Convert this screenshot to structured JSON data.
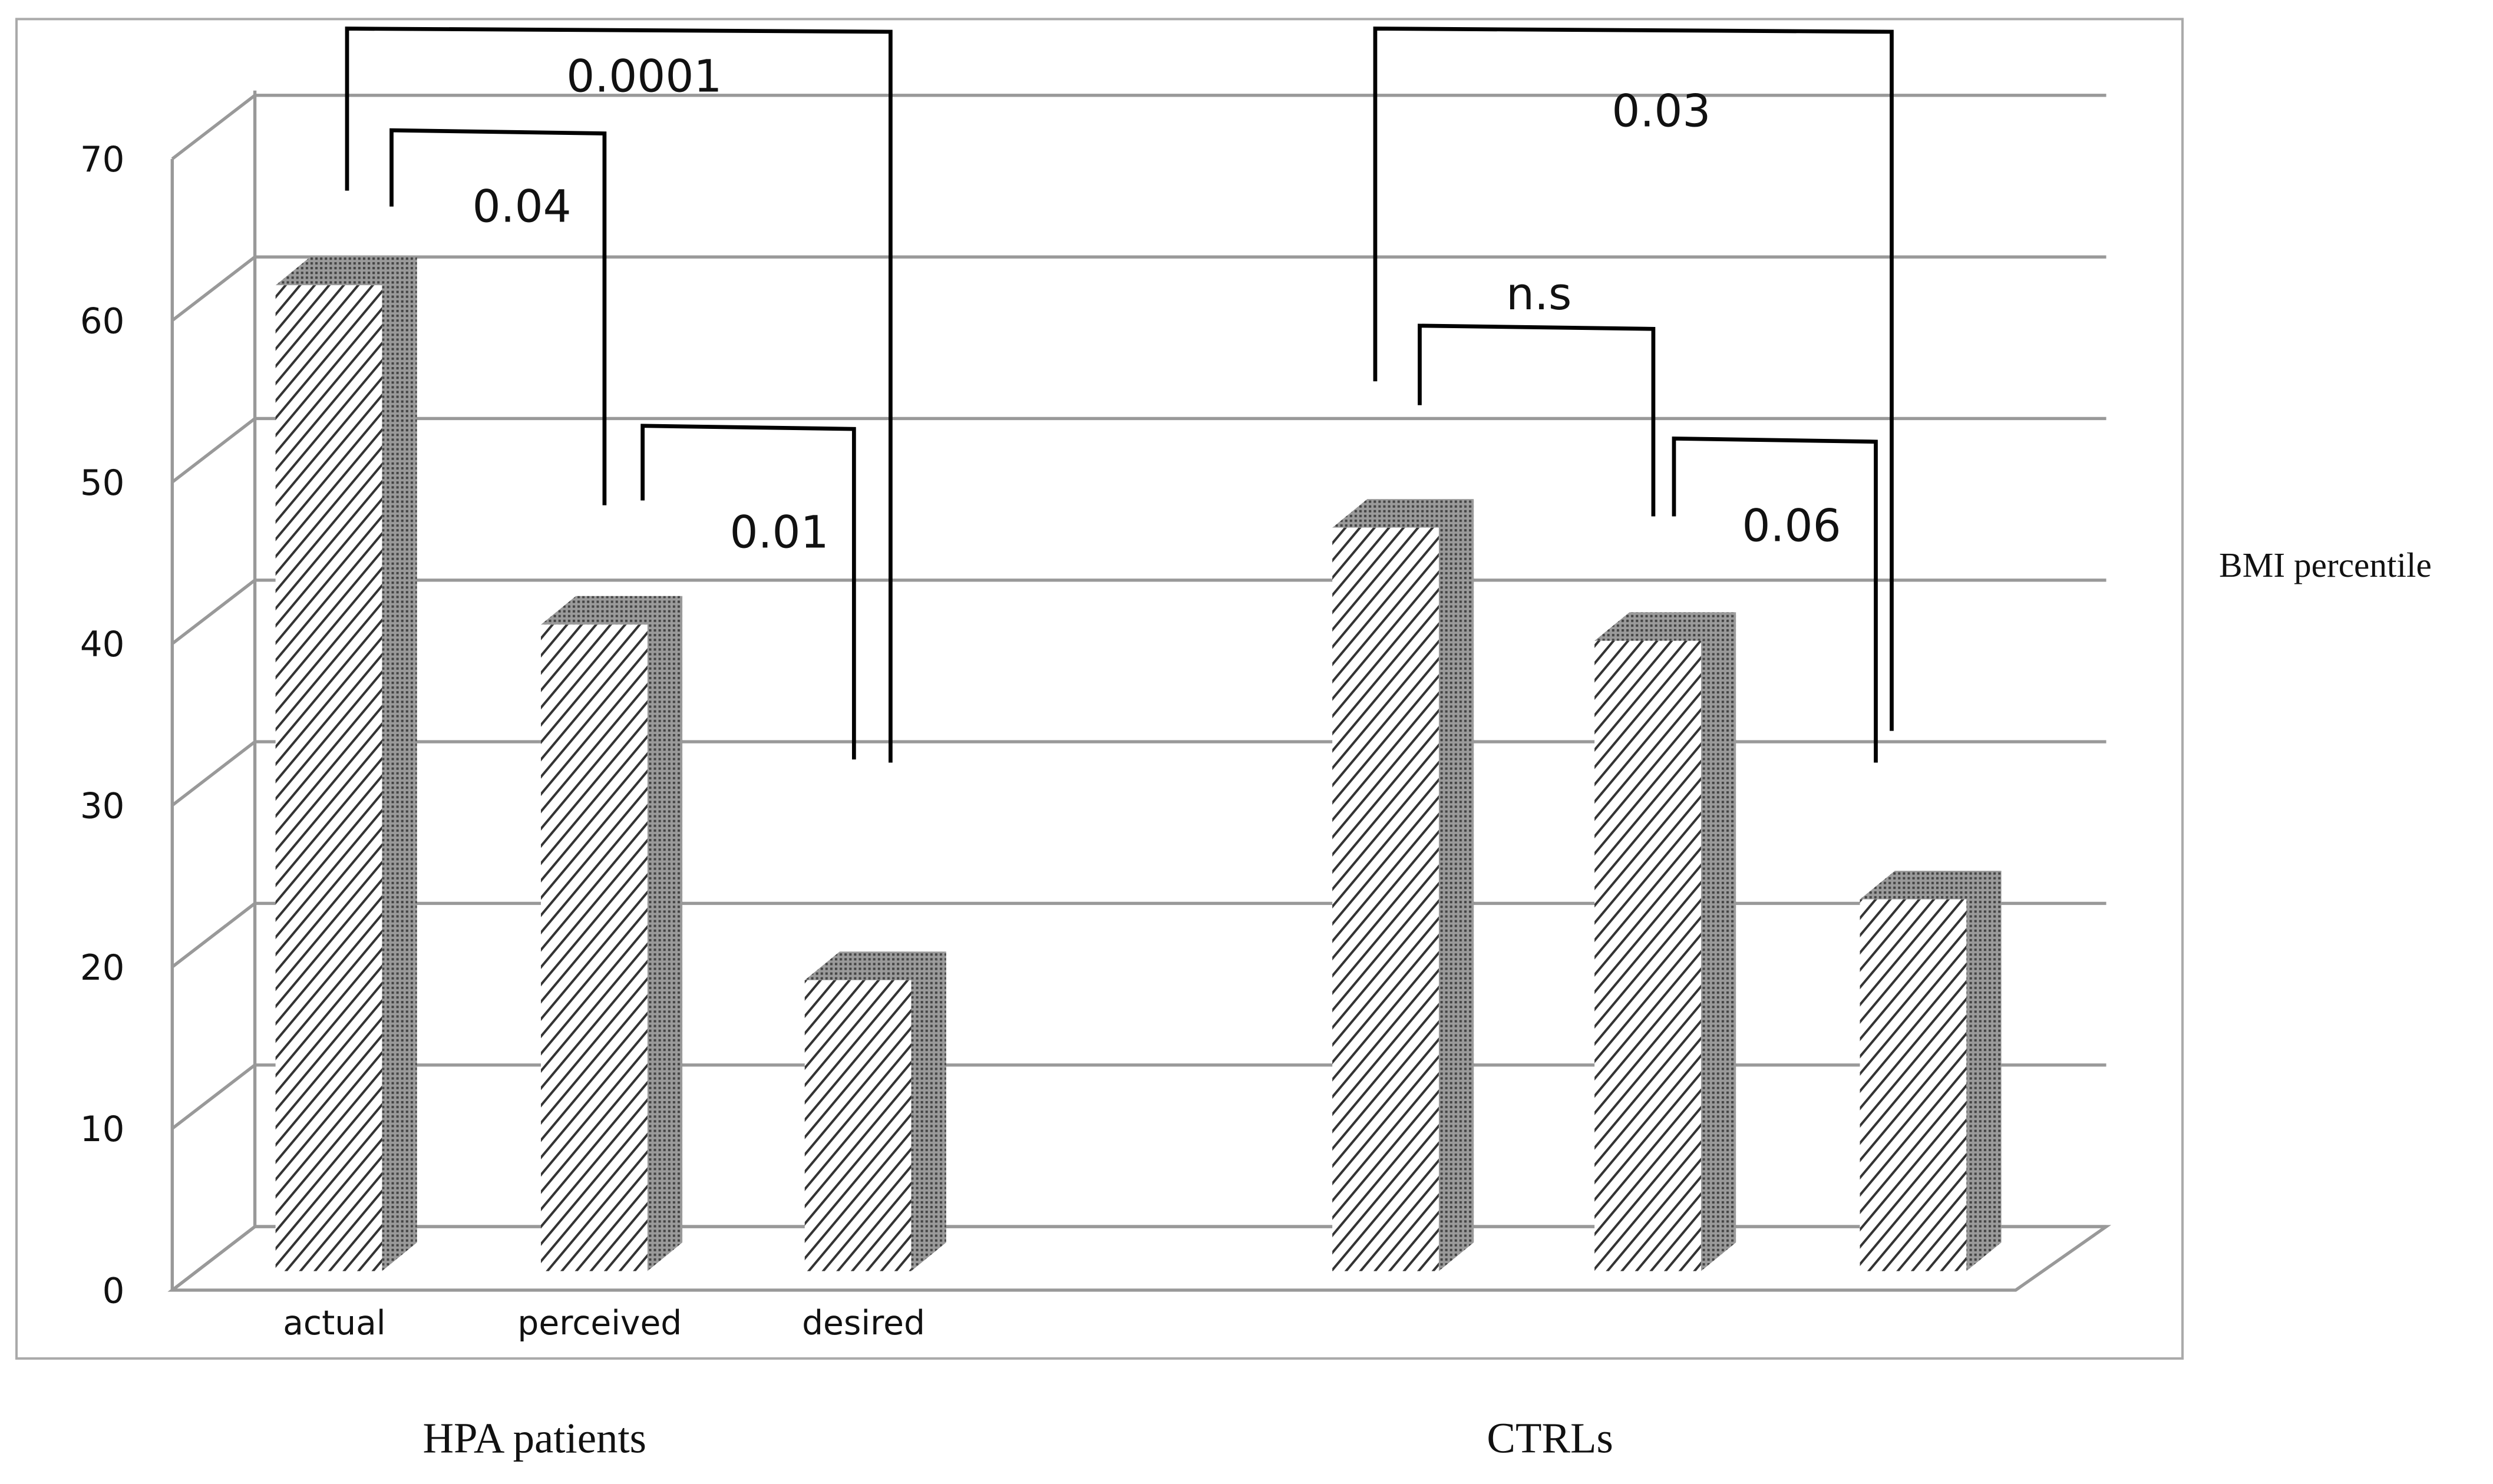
{
  "chart_data": {
    "type": "bar3d",
    "y_label": "BMI percentile",
    "groups": [
      "HPA patients",
      "CTRLs"
    ],
    "categories": [
      "actual",
      "perceived",
      "desired",
      null,
      null,
      null
    ],
    "values": [
      61,
      40,
      18,
      46,
      39,
      23
    ],
    "ylim": [
      0,
      70
    ],
    "yticks": [
      0,
      10,
      20,
      30,
      40,
      50,
      60,
      70
    ],
    "grid": true,
    "annotations": [
      "0.0001",
      "0.04",
      "0.01",
      "0.03",
      "n.s",
      "0.06"
    ]
  }
}
